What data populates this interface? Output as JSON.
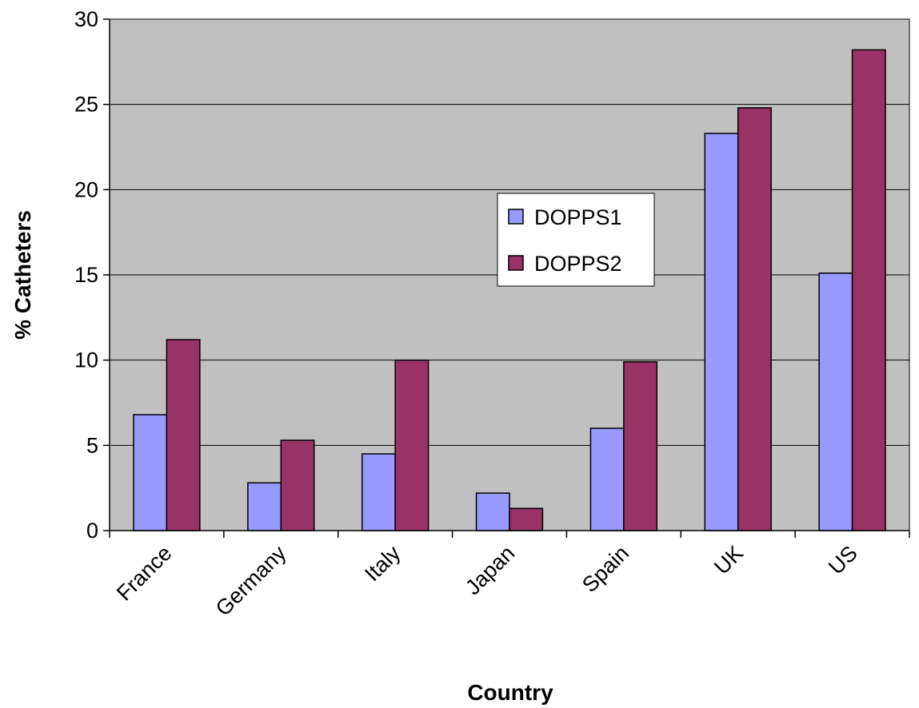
{
  "chart_data": {
    "type": "bar",
    "title": "",
    "xlabel": "Country",
    "ylabel": "% Catheters",
    "categories": [
      "France",
      "Germany",
      "Italy",
      "Japan",
      "Spain",
      "UK",
      "US"
    ],
    "series": [
      {
        "name": "DOPPS1",
        "color": "#9999ff",
        "values": [
          6.8,
          2.8,
          4.5,
          2.2,
          6.0,
          23.3,
          15.1
        ]
      },
      {
        "name": "DOPPS2",
        "color": "#993366",
        "values": [
          11.2,
          5.3,
          10.0,
          1.3,
          9.9,
          24.8,
          28.2
        ]
      }
    ],
    "ylim": [
      0,
      30
    ],
    "yticks": [
      "0",
      "5",
      "10",
      "15",
      "20",
      "25",
      "30"
    ],
    "grid": true,
    "plot_background": "#c0c0c0",
    "legend_position": "center"
  }
}
